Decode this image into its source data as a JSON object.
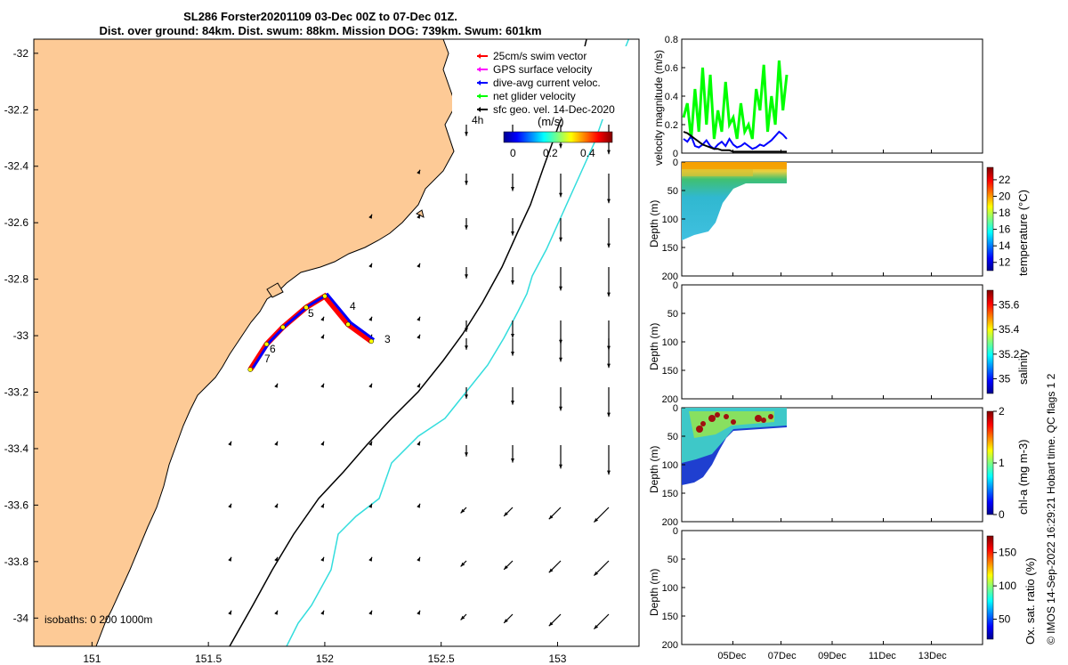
{
  "title_line1": "SL286 Forster20201109 03-Dec 00Z to 07-Dec 01Z.",
  "title_line2": "Dist. over ground: 84km. Dist. swum: 88km. Mission DOG: 739km. Swum: 601km",
  "map": {
    "x_ticks": [
      "151",
      "151.5",
      "152",
      "152.5",
      "153"
    ],
    "y_ticks": [
      "-32",
      "-32.2",
      "-32.4",
      "-32.6",
      "-32.8",
      "-33",
      "-33.2",
      "-33.4",
      "-33.6",
      "-33.8",
      "-34"
    ],
    "legend": [
      {
        "label": "25cm/s swim vector",
        "color": "#ff0000"
      },
      {
        "label": "GPS surface velocity",
        "color": "#ff00ff"
      },
      {
        "label": "dive-avg current veloc.",
        "color": "#0000ff"
      },
      {
        "label": "net glider velocity",
        "color": "#00ff00"
      },
      {
        "label": "sfc geo. vel. 14-Dec-2020",
        "color": "#000000"
      }
    ],
    "time_label": "4h",
    "colorbar_units": "(m/s)",
    "colorbar_ticks": [
      "0",
      "0.2",
      "0.4"
    ],
    "isobaths_label": "isobaths: 0 200 1000m",
    "day_markers": [
      "3",
      "4",
      "5",
      "6",
      "7"
    ],
    "land_color": "#fdca96",
    "track_color": "#ff0000",
    "isobath_200_color": "#000000",
    "isobath_1000_color": "#33dddd"
  },
  "velocity_panel": {
    "ylabel": "velocity magnitude (m/s)",
    "y_ticks": [
      "0",
      "0.2",
      "0.4",
      "0.6",
      "0.8"
    ]
  },
  "temperature_panel": {
    "ylabel": "Depth (m)",
    "y_ticks": [
      "0",
      "50",
      "100",
      "150",
      "200"
    ],
    "colorbar_label": "temperature (°C)",
    "colorbar_ticks": [
      "12",
      "14",
      "16",
      "18",
      "20",
      "22"
    ]
  },
  "salinity_panel": {
    "ylabel": "Depth (m)",
    "y_ticks": [
      "0",
      "50",
      "100",
      "150",
      "200"
    ],
    "colorbar_label": "salinity",
    "colorbar_ticks": [
      "35",
      "35.2",
      "35.4",
      "35.6"
    ]
  },
  "chla_panel": {
    "ylabel": "Depth (m)",
    "y_ticks": [
      "0",
      "50",
      "100",
      "150",
      "200"
    ],
    "colorbar_label": "chl-a (mg m-3)",
    "colorbar_ticks": [
      "0",
      "1",
      "2"
    ]
  },
  "oxygen_panel": {
    "ylabel": "Depth (m)",
    "y_ticks": [
      "0",
      "50",
      "100",
      "150",
      "200"
    ],
    "colorbar_label": "Ox. sat. ratio (%)",
    "colorbar_ticks": [
      "50",
      "100",
      "150"
    ],
    "x_ticks": [
      "05Dec",
      "07Dec",
      "09Dec",
      "11Dec",
      "13Dec"
    ]
  },
  "footer_note": "© IMOS 14-Sep-2022 16:29:21 Hobart time. QC flags 1  2",
  "chart_data": [
    {
      "type": "scatter",
      "name": "glider track map",
      "xlim": [
        150.75,
        153.35
      ],
      "ylim": [
        -34.1,
        -31.95
      ],
      "track": [
        [
          152.2,
          -33.02
        ],
        [
          152.1,
          -32.96
        ],
        [
          152.0,
          -32.86
        ],
        [
          151.92,
          -32.9
        ],
        [
          151.82,
          -32.97
        ],
        [
          151.75,
          -33.03
        ],
        [
          151.68,
          -33.12
        ]
      ],
      "day_positions": [
        [
          152.22,
          -33.03,
          "3"
        ],
        [
          152.11,
          -32.92,
          "4"
        ],
        [
          151.95,
          -32.93,
          "5"
        ],
        [
          151.74,
          -33.07,
          "6"
        ],
        [
          151.72,
          -33.11,
          "7"
        ]
      ]
    },
    {
      "type": "line",
      "name": "velocity magnitude",
      "ylim": [
        0,
        0.8
      ],
      "x_ticks": [
        "05Dec",
        "07Dec",
        "09Dec",
        "11Dec",
        "13Dec"
      ],
      "series": [
        {
          "color": "#00ff00",
          "values": [
            0.25,
            0.35,
            0.1,
            0.45,
            0.15,
            0.6,
            0.2,
            0.55,
            0.1,
            0.3,
            0.15,
            0.5,
            0.2,
            0.25,
            0.1,
            0.35,
            0.15,
            0.2,
            0.1,
            0.45,
            0.3,
            0.62,
            0.15,
            0.4,
            0.2,
            0.65,
            0.3,
            0.55
          ]
        },
        {
          "color": "#0000ff",
          "values": [
            0.1,
            0.08,
            0.12,
            0.05,
            0.04,
            0.06,
            0.09,
            0.05,
            0.03,
            0.06,
            0.08,
            0.05,
            0.1,
            0.06,
            0.04,
            0.05,
            0.07,
            0.05,
            0.03,
            0.04,
            0.06,
            0.05,
            0.07,
            0.09,
            0.12,
            0.15,
            0.13,
            0.1
          ]
        },
        {
          "color": "#000000",
          "values": [
            0.15,
            0.14,
            0.12,
            0.1,
            0.08,
            0.06,
            0.05,
            0.04,
            0.03,
            0.03,
            0.02,
            0.02,
            0.02,
            0.01,
            0.01,
            0.01,
            0.01,
            0.01,
            0.01,
            0.01,
            0.01,
            0.01,
            0.01,
            0.01,
            0.01,
            0.01,
            0.01,
            0.01
          ]
        }
      ]
    }
  ]
}
